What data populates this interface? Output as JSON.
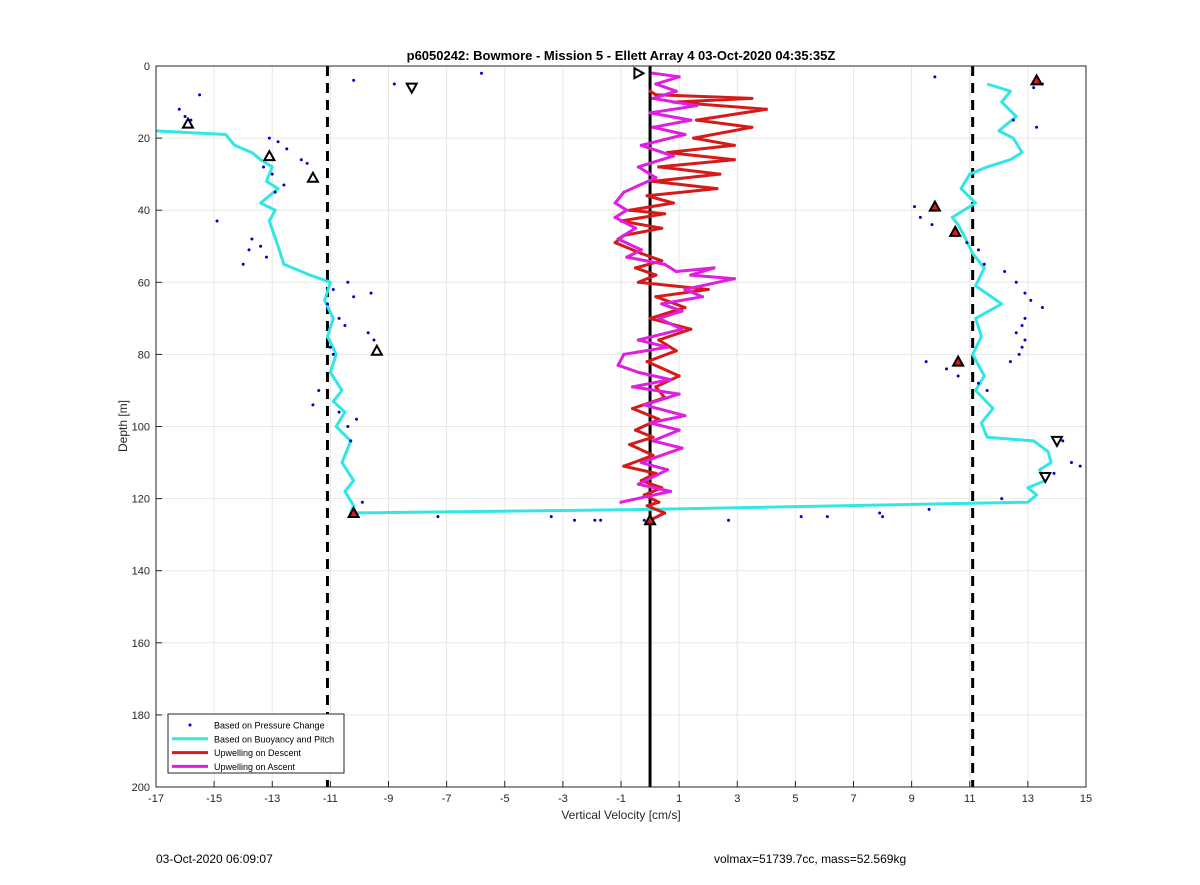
{
  "footer": {
    "timestamp": "03-Oct-2020 06:09:07",
    "stats": "volmax=51739.7cc, mass=52.569kg"
  },
  "chart_data": {
    "type": "line",
    "title": "p6050242: Bowmore - Mission 5 - Ellett Array 4 03-Oct-2020 04:35:35Z",
    "xlabel": "Vertical Velocity [cm/s]",
    "ylabel": "Depth [m]",
    "xlim": [
      -17,
      15
    ],
    "ylim": [
      0,
      200
    ],
    "y_reversed": true,
    "xticks": [
      -17,
      -15,
      -13,
      -11,
      -9,
      -7,
      -5,
      -3,
      -1,
      1,
      3,
      5,
      7,
      9,
      11,
      13,
      15
    ],
    "yticks": [
      0,
      20,
      40,
      60,
      80,
      100,
      120,
      140,
      160,
      180,
      200
    ],
    "grid": true,
    "legend_position": "bottom-left",
    "colors": {
      "pressure": "#0000cc",
      "buoyancy": "#33e6e6",
      "descent": "#d61a1a",
      "ascent": "#e01ee0",
      "reference": "#000000"
    },
    "reference_lines": [
      {
        "x": -11.1,
        "style": "dashed"
      },
      {
        "x": 0,
        "style": "solid"
      },
      {
        "x": 11.1,
        "style": "dashed"
      }
    ],
    "series": [
      {
        "name": "Based on Pressure Change",
        "style": "dots",
        "x": [
          -15.5,
          -16.2,
          -16.0,
          -15.8,
          -13.1,
          -12.8,
          -12.5,
          -12.0,
          -11.8,
          -13.3,
          -13.0,
          -12.6,
          -12.9,
          -14.9,
          -13.7,
          -13.4,
          -13.8,
          -13.2,
          -14.0,
          -10.4,
          -10.9,
          -10.2,
          -9.6,
          -11.1,
          -10.7,
          -10.5,
          -9.7,
          -9.5,
          -11.0,
          -10.9,
          -11.4,
          -11.6,
          -10.7,
          -10.1,
          -10.4,
          -10.3,
          -9.9,
          -7.3,
          -3.4,
          -2.6,
          -1.9,
          -1.7,
          -0.2,
          2.7,
          5.2,
          6.1,
          7.9,
          8.0,
          9.6,
          9.1,
          9.3,
          9.7,
          10.6,
          10.9,
          11.3,
          11.5,
          9.5,
          10.2,
          10.6,
          11.3,
          11.6,
          12.2,
          12.6,
          12.9,
          13.1,
          13.5,
          12.9,
          12.8,
          12.6,
          12.9,
          12.8,
          12.7,
          12.4,
          12.5,
          13.3,
          14.2,
          14.5,
          14.8,
          13.9,
          12.1,
          13.5,
          9.8,
          -5.8,
          -8.8,
          -10.2,
          -0.4,
          13.2
        ],
        "y": [
          8,
          12,
          14,
          15,
          20,
          21,
          23,
          26,
          27,
          28,
          30,
          33,
          35,
          43,
          48,
          50,
          51,
          53,
          55,
          60,
          62,
          64,
          63,
          66,
          70,
          72,
          74,
          76,
          78,
          80,
          90,
          94,
          96,
          98,
          100,
          104,
          121,
          125,
          125,
          126,
          126,
          126,
          126,
          126,
          125,
          125,
          124,
          125,
          123,
          39,
          42,
          44,
          47,
          49,
          51,
          55,
          82,
          84,
          86,
          88,
          90,
          57,
          60,
          63,
          65,
          67,
          70,
          72,
          74,
          76,
          78,
          80,
          82,
          15,
          17,
          104,
          110,
          111,
          113,
          120,
          5,
          3,
          2,
          5,
          4,
          2,
          6
        ]
      },
      {
        "name": "Based on Buoyancy and Pitch",
        "style": "line",
        "x": [
          -17.0,
          -14.6,
          -14.3,
          -13.7,
          -13.4,
          -13.0,
          -13.2,
          -12.8,
          -13.4,
          -12.9,
          -13.1,
          -12.8,
          -12.6,
          -11.7,
          -11.0,
          -11.2,
          -10.9,
          -11.1,
          -10.8,
          -11.0,
          -10.6,
          -10.9,
          -10.5,
          -10.8,
          -10.3,
          -10.6,
          -10.2,
          -10.5,
          -10.2,
          -10.3,
          0.0,
          13.0,
          13.3,
          13.0,
          13.6,
          13.4,
          13.8,
          13.7,
          13.2,
          11.6,
          11.4,
          11.8,
          11.2,
          11.5,
          11.1,
          11.4,
          11.2,
          12.1,
          11.2,
          11.5,
          11.1,
          10.8,
          10.6,
          10.4,
          11.2,
          10.7,
          11.0,
          11.6,
          12.4,
          12.8,
          12.5,
          12.0,
          12.3,
          12.6,
          12.1,
          12.4,
          11.6
        ],
        "y": [
          18,
          19,
          22,
          24,
          26,
          28,
          32,
          34,
          38,
          40,
          43,
          50,
          55,
          58,
          60,
          65,
          70,
          75,
          80,
          85,
          90,
          93,
          96,
          100,
          104,
          110,
          115,
          118,
          122,
          124,
          123,
          121,
          119,
          117,
          115,
          112,
          110,
          107,
          104,
          103,
          99,
          95,
          90,
          86,
          80,
          75,
          70,
          66,
          61,
          56,
          52,
          47,
          44,
          42,
          38,
          34,
          30,
          28,
          26,
          24,
          20,
          18,
          16,
          14,
          10,
          7,
          5
        ]
      },
      {
        "name": "Upwelling on Descent",
        "style": "line",
        "x": [
          0.0,
          0.2,
          3.5,
          0.8,
          4.0,
          1.6,
          3.5,
          1.5,
          2.9,
          0.6,
          2.9,
          0.3,
          2.4,
          0.1,
          2.3,
          -0.1,
          0.8,
          -0.7,
          0.5,
          -1.0,
          0.4,
          -0.9,
          -1.2,
          -0.3,
          0.4,
          -0.5,
          0.2,
          -0.4,
          2.0,
          0.2,
          1.2,
          0.0,
          1.4,
          0.3,
          0.9,
          -0.1,
          1.0,
          0.2,
          0.5,
          -0.6,
          0.3,
          -0.5,
          0.1,
          -0.7,
          0.1,
          -0.9,
          0.2,
          -0.3,
          0.4,
          -0.2,
          0.3,
          -0.1,
          0.5,
          0.0
        ],
        "y": [
          7,
          8,
          9,
          10,
          12,
          15,
          17,
          20,
          22,
          24,
          26,
          28,
          30,
          32,
          34,
          36,
          38,
          40,
          41,
          43,
          45,
          47,
          49,
          52,
          54,
          56,
          58,
          60,
          62,
          64,
          67,
          70,
          73,
          76,
          79,
          82,
          86,
          89,
          92,
          95,
          98,
          101,
          103,
          105,
          108,
          111,
          113,
          115,
          117,
          119,
          121,
          122,
          124,
          126
        ]
      },
      {
        "name": "Upwelling on Ascent",
        "style": "line",
        "x": [
          0.1,
          1.0,
          0.2,
          0.9,
          0.1,
          1.6,
          0.0,
          1.4,
          0.1,
          1.2,
          -0.3,
          0.8,
          -0.4,
          0.2,
          -0.9,
          -1.2,
          -0.8,
          -1.2,
          -0.5,
          -1.1,
          -0.3,
          -0.8,
          0.5,
          0.9,
          2.2,
          1.4,
          2.9,
          1.2,
          1.8,
          0.4,
          1.1,
          0.3,
          1.1,
          -0.4,
          0.6,
          -0.9,
          -1.1,
          -0.4,
          0.7,
          -0.6,
          1.0,
          -0.2,
          1.2,
          0.0,
          1.0,
          0.1,
          1.1,
          -0.3,
          0.6,
          -0.4,
          0.7,
          -1.0
        ],
        "y": [
          2,
          3,
          5,
          7,
          9,
          11,
          13,
          15,
          17,
          19,
          22,
          25,
          28,
          31,
          35,
          38,
          40,
          42,
          45,
          48,
          51,
          53,
          55,
          57,
          56,
          58,
          59,
          62,
          64,
          66,
          68,
          70,
          73,
          76,
          78,
          80,
          83,
          85,
          87,
          89,
          91,
          94,
          97,
          99,
          101,
          104,
          106,
          110,
          112,
          116,
          118,
          121
        ]
      },
      {
        "name": "",
        "style": "markers",
        "markers": [
          {
            "x": -15.9,
            "y": 16,
            "shape": "triangle-up",
            "fill": "none"
          },
          {
            "x": -13.1,
            "y": 25,
            "shape": "triangle-up",
            "fill": "none"
          },
          {
            "x": -11.6,
            "y": 31,
            "shape": "triangle-up",
            "fill": "none"
          },
          {
            "x": -9.4,
            "y": 79,
            "shape": "triangle-up",
            "fill": "none"
          },
          {
            "x": -10.2,
            "y": 124,
            "shape": "triangle-up",
            "fill": "red"
          },
          {
            "x": -8.2,
            "y": 6,
            "shape": "triangle-down",
            "fill": "none"
          },
          {
            "x": -0.4,
            "y": 2,
            "shape": "triangle-right",
            "fill": "none"
          },
          {
            "x": 0.0,
            "y": 126,
            "shape": "triangle-up",
            "fill": "red"
          },
          {
            "x": 9.8,
            "y": 39,
            "shape": "triangle-up",
            "fill": "red"
          },
          {
            "x": 10.5,
            "y": 46,
            "shape": "triangle-up",
            "fill": "red"
          },
          {
            "x": 10.6,
            "y": 82,
            "shape": "triangle-up",
            "fill": "red"
          },
          {
            "x": 13.3,
            "y": 4,
            "shape": "triangle-up",
            "fill": "red"
          },
          {
            "x": 14.0,
            "y": 104,
            "shape": "triangle-down",
            "fill": "none"
          },
          {
            "x": 13.6,
            "y": 114,
            "shape": "triangle-down",
            "fill": "none"
          }
        ]
      }
    ]
  }
}
